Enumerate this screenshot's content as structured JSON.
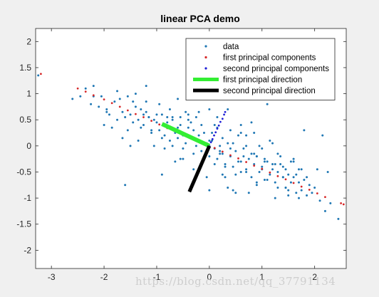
{
  "chart_data": {
    "type": "scatter",
    "title": "linear PCA demo",
    "xlabel": "",
    "ylabel": "",
    "xlim": [
      -3.3,
      2.6
    ],
    "ylim": [
      -2.35,
      2.25
    ],
    "xticks": [
      -3,
      -2,
      -1,
      0,
      1,
      2
    ],
    "xtick_labels": [
      "-3",
      "-2",
      "-1",
      "0",
      "1",
      "2"
    ],
    "yticks": [
      -2,
      -1.5,
      -1,
      -0.5,
      0,
      0.5,
      1,
      1.5,
      2
    ],
    "ytick_labels": [
      "-2",
      "-1.5",
      "-1",
      "-0.5",
      "0",
      "0.5",
      "1",
      "1.5",
      "2"
    ],
    "grid": false,
    "legend_position": "top-right",
    "series": [
      {
        "name": "data",
        "kind": "points",
        "color": "#1f77b4",
        "x": [
          -3.25,
          -2.6,
          -2.45,
          -2.35,
          -2.2,
          -2.25,
          -2.1,
          -2.05,
          -1.95,
          -1.9,
          -1.8,
          -1.75,
          -1.7,
          -1.65,
          -1.6,
          -1.55,
          -1.5,
          -1.45,
          -1.4,
          -1.35,
          -1.3,
          -1.25,
          -1.2,
          -1.15,
          -1.1,
          -1.05,
          -1.0,
          -0.95,
          -0.9,
          -0.85,
          -0.8,
          -0.75,
          -0.7,
          -0.65,
          -0.6,
          -0.55,
          -0.5,
          -0.45,
          -0.4,
          -0.35,
          -0.3,
          -0.25,
          -0.2,
          -0.15,
          -0.1,
          -0.05,
          0.0,
          0.05,
          0.1,
          0.15,
          0.2,
          0.25,
          0.3,
          0.35,
          0.4,
          0.45,
          0.5,
          0.55,
          0.6,
          0.65,
          0.7,
          0.75,
          0.8,
          0.85,
          0.9,
          0.95,
          1.0,
          1.05,
          1.1,
          1.15,
          1.2,
          1.25,
          1.3,
          1.35,
          1.4,
          1.45,
          1.5,
          1.55,
          1.6,
          1.65,
          1.7,
          1.75,
          1.8,
          1.85,
          1.9,
          2.0,
          2.1,
          2.2,
          2.45,
          -1.4,
          -1.2,
          -1.0,
          -0.8,
          -0.6,
          -0.4,
          -0.2,
          0.0,
          0.2,
          0.4,
          0.6,
          0.8,
          1.0,
          1.2,
          1.4,
          -1.3,
          -1.1,
          -0.9,
          -0.7,
          -0.5,
          -0.3,
          -0.1,
          0.1,
          0.3,
          0.5,
          0.7,
          0.9,
          1.1,
          1.3,
          1.5,
          1.7,
          -0.75,
          -0.55,
          -0.35,
          -0.15,
          0.05,
          0.25,
          0.45,
          0.65,
          0.85,
          1.05,
          1.25,
          1.45,
          1.65,
          1.85,
          -1.55,
          -0.95,
          -0.45,
          0.15,
          0.55,
          0.95,
          1.35,
          1.75,
          -1.2,
          -0.6,
          0.0,
          0.6,
          1.2,
          -0.3,
          0.3,
          0.9,
          1.5,
          -0.85,
          0.8,
          1.6,
          2.05,
          -1.05,
          -0.25,
          0.35,
          1.15,
          -2.0,
          -1.85,
          -1.65,
          -1.5,
          -1.35,
          -0.65,
          -0.05,
          0.45,
          0.75,
          1.25,
          1.55,
          1.95,
          2.3,
          -0.2,
          0.1,
          0.4,
          0.7,
          1.0,
          1.3,
          1.6,
          0.25,
          0.6,
          -0.5,
          -1.6,
          2.15,
          1.4,
          0.9,
          -0.9,
          0.5,
          -0.1,
          1.1,
          1.8,
          -1.25,
          0.2,
          0.7,
          1.45,
          0.0,
          -0.7,
          0.35,
          -0.4,
          0.85,
          1.05,
          1.7,
          2.25,
          -2.2,
          -1.95,
          -1.75,
          -1.45,
          -1.15,
          -0.55,
          0.15
        ],
        "y": [
          1.35,
          0.9,
          0.95,
          1.1,
          1.15,
          0.8,
          0.75,
          0.95,
          0.7,
          0.6,
          0.85,
          0.5,
          0.9,
          0.65,
          0.55,
          0.3,
          0.6,
          0.45,
          1.0,
          0.5,
          0.7,
          0.4,
          0.65,
          0.55,
          0.3,
          0.5,
          0.45,
          0.3,
          0.6,
          0.2,
          0.45,
          0.1,
          0.5,
          0.25,
          0.15,
          0.4,
          0.2,
          0.05,
          0.35,
          0.15,
          0.3,
          0.0,
          0.1,
          -0.1,
          0.25,
          0.05,
          -0.2,
          0.1,
          -0.05,
          -0.25,
          0.0,
          -0.15,
          -0.35,
          0.05,
          -0.2,
          -0.4,
          -0.1,
          -0.3,
          -0.5,
          -0.2,
          -0.45,
          -0.25,
          -0.6,
          -0.35,
          -0.2,
          -0.5,
          -0.4,
          -0.65,
          -0.3,
          -0.55,
          -0.45,
          -0.7,
          -0.5,
          -0.35,
          -0.6,
          -0.8,
          -0.55,
          -0.7,
          -0.6,
          -0.9,
          -0.7,
          -0.85,
          -0.65,
          -0.95,
          -0.75,
          -0.8,
          -1.05,
          -1.25,
          -1.4,
          0.75,
          0.85,
          0.6,
          0.55,
          0.35,
          0.5,
          0.2,
          0.1,
          -0.1,
          -0.05,
          -0.3,
          -0.15,
          -0.45,
          -0.35,
          -0.6,
          0.35,
          0.25,
          0.15,
          0.0,
          -0.05,
          -0.15,
          -0.2,
          -0.35,
          -0.4,
          -0.55,
          -0.5,
          -0.7,
          -0.65,
          -0.8,
          -0.85,
          -1.0,
          0.7,
          0.55,
          0.45,
          0.4,
          0.25,
          0.15,
          0.05,
          -0.05,
          -0.15,
          -0.25,
          -0.35,
          -0.45,
          -0.55,
          -0.6,
          0.95,
          0.8,
          0.65,
          0.35,
          0.2,
          0.0,
          -0.2,
          -0.45,
          1.15,
          0.9,
          0.7,
          0.4,
          0.05,
          -0.45,
          -0.6,
          -0.75,
          -0.95,
          -0.05,
          0.45,
          -0.25,
          -0.45,
          0.0,
          0.55,
          -0.8,
          0.1,
          0.4,
          0.35,
          0.15,
          0.0,
          0.1,
          -0.3,
          -0.6,
          -0.85,
          -0.9,
          -1.0,
          -0.3,
          -0.9,
          -1.1,
          0.65,
          0.4,
          0.3,
          0.2,
          -0.05,
          -0.15,
          -0.3,
          -0.55,
          0.25,
          -0.25,
          -0.75,
          0.2,
          -0.4,
          -0.2,
          -0.55,
          -0.9,
          1.1,
          0.8,
          0.3,
          0.6,
          -0.15,
          0.0,
          -0.8,
          -0.85,
          0.55,
          0.7,
          0.6,
          0.25,
          -0.3,
          -0.45,
          -0.5,
          0.95,
          0.65,
          1.05,
          0.85,
          0.55,
          -0.25,
          0.55
        ]
      },
      {
        "name": "first principal components",
        "kind": "points",
        "color": "#d62728",
        "x": [
          -3.2,
          -2.5,
          -2.35,
          -2.2,
          -2.0,
          -1.85,
          -1.7,
          -1.55,
          -1.4,
          -1.25,
          -1.1,
          -0.95,
          -0.8,
          -0.65,
          -0.5,
          -0.35,
          -0.2,
          -0.05,
          0.1,
          0.25,
          0.4,
          0.55,
          0.7,
          0.85,
          1.0,
          1.15,
          1.3,
          1.45,
          1.6,
          1.75,
          1.9,
          2.05,
          2.2,
          2.5,
          2.55
        ],
        "y": [
          1.38,
          1.1,
          1.04,
          0.97,
          0.89,
          0.82,
          0.75,
          0.68,
          0.61,
          0.55,
          0.48,
          0.41,
          0.34,
          0.28,
          0.21,
          0.15,
          0.08,
          0.02,
          -0.04,
          -0.11,
          -0.18,
          -0.24,
          -0.31,
          -0.38,
          -0.44,
          -0.51,
          -0.58,
          -0.64,
          -0.71,
          -0.78,
          -0.84,
          -0.91,
          -0.98,
          -1.1,
          -1.12
        ]
      },
      {
        "name": "second principal components",
        "kind": "points",
        "color": "#1f1fd6",
        "x": [
          0.0,
          0.03,
          0.06,
          0.09,
          0.12,
          0.15,
          0.18,
          0.21,
          0.25,
          0.28,
          0.3
        ],
        "y": [
          0.0,
          0.07,
          0.13,
          0.2,
          0.26,
          0.33,
          0.39,
          0.46,
          0.52,
          0.6,
          0.65
        ]
      },
      {
        "name": "first principal direction",
        "kind": "line",
        "color": "#33ee33",
        "x": [
          -0.9,
          0.0
        ],
        "y": [
          0.42,
          0.0
        ]
      },
      {
        "name": "second principal direction",
        "kind": "line",
        "color": "#000000",
        "x": [
          0.0,
          -0.38
        ],
        "y": [
          0.0,
          -0.88
        ]
      }
    ],
    "colors": {
      "background": "#f0f0f0",
      "plot_area": "#ffffff",
      "axis": "#262626"
    }
  },
  "watermark": {
    "text": "https://blog.csdn.net/qq_37791134"
  }
}
